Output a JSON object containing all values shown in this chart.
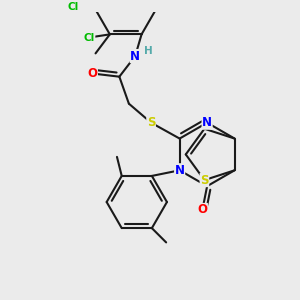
{
  "background_color": "#ebebeb",
  "bond_color": "#1a1a1a",
  "atom_colors": {
    "Cl": "#00bb00",
    "N": "#0000ff",
    "O": "#ff0000",
    "S": "#cccc00",
    "H": "#55aaaa",
    "C": "#1a1a1a"
  },
  "figsize": [
    3.0,
    3.0
  ],
  "dpi": 100
}
